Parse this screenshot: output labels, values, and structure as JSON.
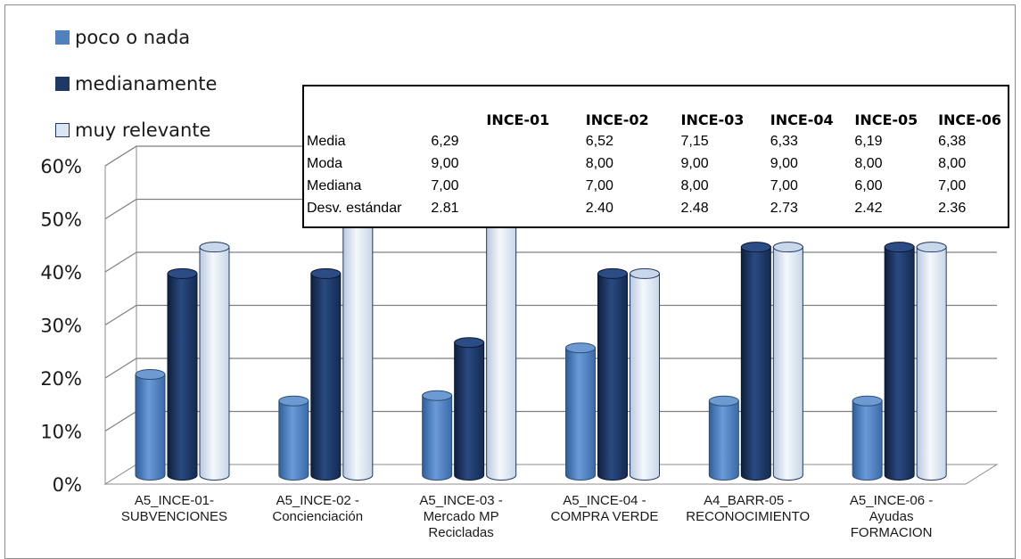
{
  "chart_data": {
    "type": "bar",
    "ylim": [
      0,
      60
    ],
    "yticks": [
      "0%",
      "10%",
      "20%",
      "30%",
      "40%",
      "50%",
      "60%"
    ],
    "categories": [
      [
        "A5_INCE-01-",
        "SUBVENCIONES"
      ],
      [
        "A5_INCE-02 -",
        "Concienciación"
      ],
      [
        "A5_INCE-03 -",
        "Mercado MP",
        "Recicladas"
      ],
      [
        "A5_INCE-04 -",
        "COMPRA VERDE"
      ],
      [
        "A4_BARR-05 -",
        "RECONOCIMIENTO"
      ],
      [
        "A5_INCE-06 -",
        "Ayudas",
        "FORMACION"
      ]
    ],
    "series": [
      {
        "name": "poco o nada",
        "color": "#4f81bd",
        "values": [
          19,
          14,
          15,
          24,
          14,
          14
        ]
      },
      {
        "name": "medianamente",
        "color": "#1f3864",
        "values": [
          38,
          38,
          25,
          38,
          43,
          43
        ]
      },
      {
        "name": "muy relevante",
        "color": "#dce6f2",
        "values": [
          43,
          52,
          52,
          38,
          43,
          43
        ]
      }
    ],
    "grid": true,
    "legend_position": "top-left"
  },
  "legend": {
    "items": [
      {
        "label": "poco o nada",
        "color": "#4f81bd"
      },
      {
        "label": "medianamente",
        "color": "#1f3864"
      },
      {
        "label": "muy relevante",
        "color": "#dce6f2"
      }
    ]
  },
  "stats_table": {
    "headers": [
      "INCE-01",
      "INCE-02",
      "INCE-03",
      "INCE-04",
      "INCE-05",
      "INCE-06"
    ],
    "rows": [
      {
        "label": "Media",
        "values": [
          "6,29",
          "6,52",
          "7,15",
          "6,33",
          "6,19",
          "6,38"
        ]
      },
      {
        "label": "Moda",
        "values": [
          "9,00",
          "8,00",
          "9,00",
          "9,00",
          "8,00",
          "8,00"
        ]
      },
      {
        "label": "Mediana",
        "values": [
          "7,00",
          "7,00",
          "8,00",
          "7,00",
          "6,00",
          "7,00"
        ]
      },
      {
        "label": "Desv. estándar",
        "values": [
          "2.81",
          "2.40",
          "2.48",
          "2.73",
          "2.42",
          "2.36"
        ]
      }
    ]
  }
}
